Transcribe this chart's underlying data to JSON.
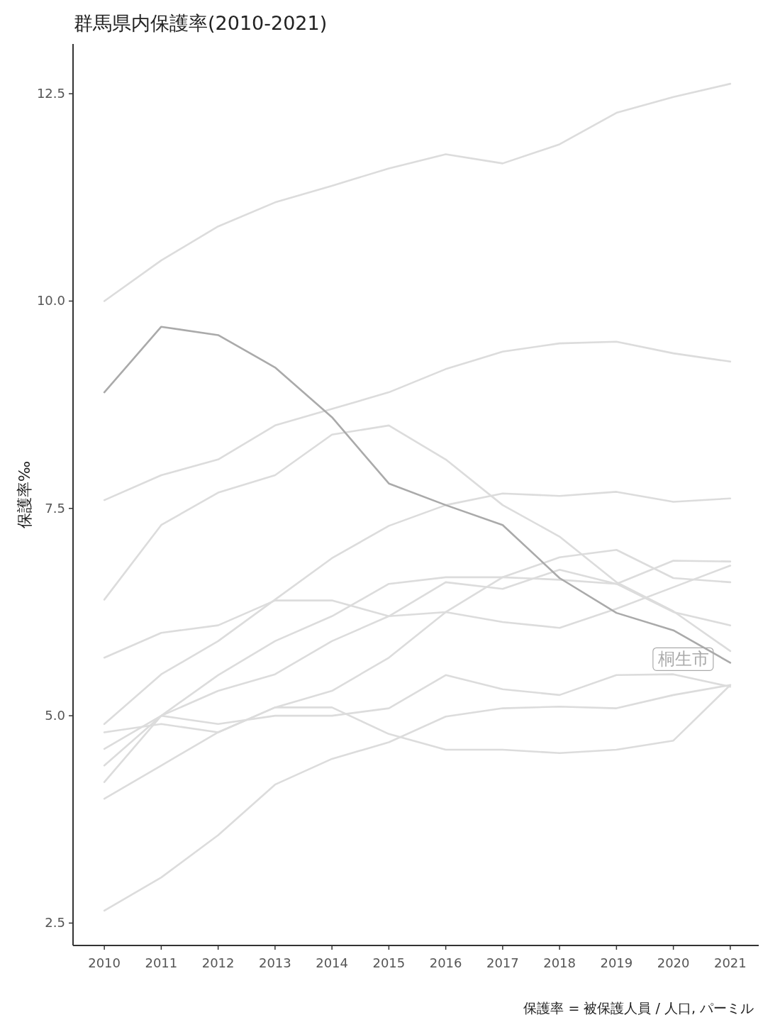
{
  "chart_data": {
    "type": "line",
    "title": "群馬県内保護率(2010-2021)",
    "ylabel": "保護率‰",
    "annotations": [
      "保護率 = 被保護人員 / 人口, パーミル"
    ],
    "x": [
      2010,
      2011,
      2012,
      2013,
      2014,
      2015,
      2016,
      2017,
      2018,
      2019,
      2020,
      2021
    ],
    "xlim": [
      2009.45,
      2021.5
    ],
    "xticks": [
      2010,
      2011,
      2012,
      2013,
      2014,
      2015,
      2016,
      2017,
      2018,
      2019,
      2020,
      2021
    ],
    "ylim": [
      2.23,
      13.1
    ],
    "yticks": [
      {
        "value": 2.5,
        "label": "2.5"
      },
      {
        "value": 5,
        "label": "5.0"
      },
      {
        "value": 7.5,
        "label": "7.5"
      },
      {
        "value": 10,
        "label": "10.0"
      },
      {
        "value": 12.5,
        "label": "12.5"
      }
    ],
    "series": [
      {
        "color": "#dcdcdc",
        "values": [
          10.0,
          10.49,
          10.9,
          11.19,
          11.39,
          11.6,
          11.77,
          11.66,
          11.89,
          12.27,
          12.46,
          12.62
        ]
      },
      {
        "color": "#dcdcdc",
        "values": [
          7.6,
          7.9,
          8.09,
          8.5,
          8.7,
          8.9,
          9.18,
          9.39,
          9.49,
          9.51,
          9.37,
          9.27
        ]
      },
      {
        "color": "#dcdcdc",
        "values": [
          6.4,
          7.3,
          7.69,
          7.9,
          8.39,
          8.5,
          8.09,
          7.54,
          7.16,
          6.61,
          6.26,
          5.78
        ]
      },
      {
        "color": "#dcdcdc",
        "values": [
          5.7,
          6.0,
          6.09,
          6.39,
          6.39,
          6.2,
          6.25,
          6.13,
          6.06,
          6.29,
          6.55,
          6.81
        ]
      },
      {
        "color": "#dcdcdc",
        "values": [
          4.9,
          5.5,
          5.9,
          6.4,
          6.9,
          7.29,
          7.54,
          7.68,
          7.65,
          7.7,
          7.58,
          7.62
        ]
      },
      {
        "color": "#dcdcdc",
        "values": [
          4.8,
          4.9,
          4.8,
          5.1,
          5.3,
          5.7,
          6.25,
          6.67,
          6.91,
          7.0,
          6.66,
          6.61
        ]
      },
      {
        "color": "#dcdcdc",
        "values": [
          4.2,
          5.0,
          4.9,
          5.0,
          5.0,
          5.09,
          5.49,
          5.32,
          5.25,
          5.49,
          5.5,
          5.35
        ]
      },
      {
        "color": "#dcdcdc",
        "values": [
          4.0,
          4.4,
          4.8,
          5.1,
          5.1,
          4.78,
          4.59,
          4.59,
          4.55,
          4.59,
          4.7,
          5.37
        ]
      },
      {
        "color": "#dcdcdc",
        "values": [
          4.6,
          5.0,
          5.49,
          5.9,
          6.2,
          6.59,
          6.67,
          6.67,
          6.64,
          6.59,
          6.25,
          6.09
        ]
      },
      {
        "color": "#dcdcdc",
        "values": [
          4.4,
          5.0,
          5.3,
          5.5,
          5.9,
          6.2,
          6.61,
          6.53,
          6.76,
          6.59,
          6.87,
          6.86
        ]
      },
      {
        "color": "#dcdcdc",
        "values": [
          2.65,
          3.05,
          3.56,
          4.17,
          4.48,
          4.68,
          4.99,
          5.09,
          5.11,
          5.09,
          5.25,
          5.37
        ]
      },
      {
        "name": "桐生市",
        "color": "#aaaaaa",
        "values": [
          8.9,
          9.69,
          9.59,
          9.2,
          8.6,
          7.8,
          7.54,
          7.3,
          6.66,
          6.24,
          6.03,
          5.64
        ]
      }
    ]
  }
}
